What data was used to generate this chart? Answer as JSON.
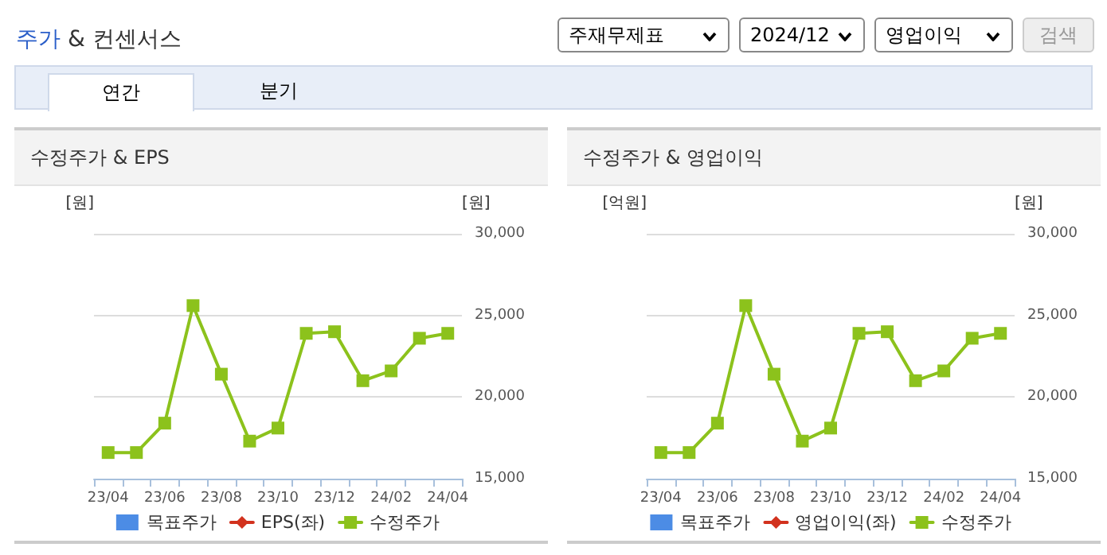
{
  "chart_data": [
    {
      "type": "other",
      "title": "주가 & 컨센서스",
      "annotations": [
        "주재무제표",
        "2024/12",
        "영업이익",
        "검색",
        "연간",
        "분기"
      ]
    },
    {
      "type": "line",
      "title": "수정주가 & EPS",
      "ylabel": "[원]",
      "y2label": "[원]",
      "categories": [
        "23/04",
        null,
        "23/06",
        null,
        "23/08",
        null,
        "23/10",
        null,
        "23/12",
        null,
        "24/02",
        null,
        "24/04"
      ],
      "series": [
        {
          "name": "목표주가",
          "type": "scatter",
          "marker": "square",
          "color": "#1f6fde",
          "axis": "y2",
          "values": [
            null,
            null,
            null,
            null,
            null,
            null,
            null,
            null,
            null,
            null,
            null,
            null,
            null
          ]
        },
        {
          "name": "EPS(좌)",
          "marker": "diamond",
          "color": "#d2321e",
          "values": [
            null,
            null,
            null,
            null,
            null,
            null,
            null,
            null,
            null,
            null,
            null,
            null,
            null
          ]
        },
        {
          "name": "수정주가",
          "marker": "square",
          "color": "#8cc21c",
          "axis": "y2",
          "values": [
            16600,
            16600,
            18400,
            25600,
            21400,
            17300,
            18100,
            23900,
            24000,
            21000,
            21600,
            23600,
            23900
          ]
        }
      ],
      "y2lim": [
        15000,
        30000
      ],
      "y2ticks": [
        {
          "value": 15000,
          "label": "15,000"
        },
        {
          "value": 20000,
          "label": "20,000"
        },
        {
          "value": 25000,
          "label": "25,000"
        },
        {
          "value": 30000,
          "label": "30,000"
        }
      ],
      "grid": "y",
      "legend": "bottom",
      "line_style": "solid"
    },
    {
      "type": "line",
      "title": "수정주가 & 영업이익",
      "ylabel": "[억원]",
      "y2label": "[원]",
      "categories": [
        "23/04",
        null,
        "23/06",
        null,
        "23/08",
        null,
        "23/10",
        null,
        "23/12",
        null,
        "24/02",
        null,
        "24/04"
      ],
      "series": [
        {
          "name": "목표주가",
          "type": "scatter",
          "marker": "square",
          "color": "#1f6fde",
          "axis": "y2",
          "values": [
            null,
            null,
            null,
            null,
            null,
            null,
            null,
            null,
            null,
            null,
            null,
            null,
            null
          ]
        },
        {
          "name": "영업이익(좌)",
          "marker": "diamond",
          "color": "#d2321e",
          "values": [
            null,
            null,
            null,
            null,
            null,
            null,
            null,
            null,
            null,
            null,
            null,
            null,
            null
          ]
        },
        {
          "name": "수정주가",
          "marker": "square",
          "color": "#8cc21c",
          "axis": "y2",
          "values": [
            16600,
            16600,
            18400,
            25600,
            21400,
            17300,
            18100,
            23900,
            24000,
            21000,
            21600,
            23600,
            23900
          ]
        }
      ],
      "y2lim": [
        15000,
        30000
      ],
      "y2ticks": [
        {
          "value": 15000,
          "label": "15,000"
        },
        {
          "value": 20000,
          "label": "20,000"
        },
        {
          "value": 25000,
          "label": "25,000"
        },
        {
          "value": 30000,
          "label": "30,000"
        }
      ],
      "grid": "y",
      "legend": "bottom",
      "line_style": "solid"
    }
  ]
}
